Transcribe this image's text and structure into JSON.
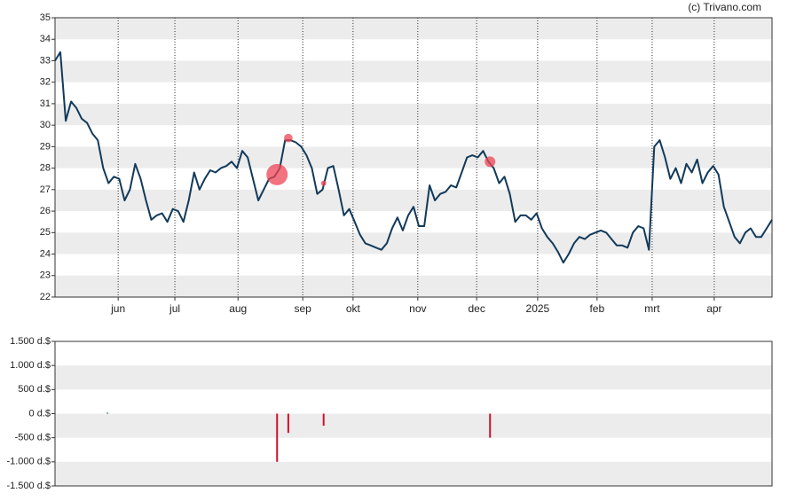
{
  "credit": "(c) Trivano.com",
  "chart_data": [
    {
      "type": "line",
      "xlim": [
        0,
        134
      ],
      "xticks": [
        {
          "value": 11.8,
          "label": "jun"
        },
        {
          "value": 22.4,
          "label": "jul"
        },
        {
          "value": 34.2,
          "label": "aug"
        },
        {
          "value": 46.3,
          "label": "sep"
        },
        {
          "value": 55.7,
          "label": "okt"
        },
        {
          "value": 67.8,
          "label": "nov"
        },
        {
          "value": 78.8,
          "label": "dec"
        },
        {
          "value": 90.2,
          "label": "2025"
        },
        {
          "value": 101.3,
          "label": "feb"
        },
        {
          "value": 111.6,
          "label": "mrt"
        },
        {
          "value": 123.2,
          "label": "apr"
        }
      ],
      "ylim": [
        22,
        35
      ],
      "yticks": [
        22,
        23,
        24,
        25,
        26,
        27,
        28,
        29,
        30,
        31,
        32,
        33,
        34,
        35
      ],
      "grid": true,
      "series": [
        {
          "color": "#123a5a",
          "values": [
            33.0,
            33.4,
            30.2,
            31.1,
            30.8,
            30.3,
            30.1,
            29.6,
            29.3,
            28.0,
            27.3,
            27.6,
            27.5,
            26.5,
            27.0,
            28.2,
            27.5,
            26.5,
            25.6,
            25.8,
            25.9,
            25.5,
            26.1,
            26.0,
            25.5,
            26.5,
            27.8,
            27.0,
            27.5,
            27.9,
            27.8,
            28.0,
            28.1,
            28.3,
            28.0,
            28.8,
            28.5,
            27.5,
            26.5,
            27.0,
            27.5,
            27.6,
            28.0,
            29.3,
            29.3,
            29.2,
            29.0,
            28.6,
            28.0,
            26.8,
            27.0,
            28.0,
            28.1,
            27.0,
            25.8,
            26.1,
            25.5,
            24.9,
            24.5,
            24.4,
            24.3,
            24.2,
            24.5,
            25.2,
            25.7,
            25.1,
            25.8,
            26.2,
            25.3,
            25.3,
            27.2,
            26.5,
            26.8,
            26.9,
            27.2,
            27.1,
            27.8,
            28.5,
            28.6,
            28.5,
            28.8,
            28.3,
            28.0,
            27.3,
            27.6,
            26.8,
            25.5,
            25.8,
            25.8,
            25.6,
            25.9,
            25.2,
            24.8,
            24.5,
            24.1,
            23.6,
            24.0,
            24.5,
            24.8,
            24.7,
            24.9,
            25.0,
            25.1,
            25.0,
            24.7,
            24.4,
            24.4,
            24.3,
            25.0,
            25.3,
            25.2,
            24.2,
            29.0,
            29.3,
            28.5,
            27.5,
            28.0,
            27.3,
            28.2,
            27.8,
            28.4,
            27.3,
            27.8,
            28.1,
            27.7,
            26.2,
            25.5,
            24.8,
            24.5,
            25.0,
            25.2,
            24.8,
            24.8,
            25.2,
            25.6
          ]
        }
      ],
      "markers": {
        "color": "#ee4455",
        "y": [
          27.3,
          27.7,
          29.4,
          27.3,
          28.3
        ]
      }
    },
    {
      "type": "bar",
      "xlim": [
        0,
        134
      ],
      "ylim": [
        -1500,
        1500
      ],
      "yticks": [
        {
          "value": -1500,
          "label": "-1.500 d.$"
        },
        {
          "value": -1000,
          "label": "-1.000 d.$"
        },
        {
          "value": -500,
          "label": "-500 d.$"
        },
        {
          "value": 0,
          "label": "0 d.$"
        },
        {
          "value": 500,
          "label": "500 d.$"
        },
        {
          "value": 1000,
          "label": "1.000 d.$"
        },
        {
          "value": 1500,
          "label": "1.500 d.$"
        }
      ],
      "grid": true,
      "positive_color": "#2a8a4a",
      "negative_color": "#d0102e",
      "x": [
        9.8,
        41.5,
        43.6,
        50.2,
        81.3
      ],
      "values": [
        20,
        -1000,
        -400,
        -250,
        -500
      ]
    }
  ]
}
